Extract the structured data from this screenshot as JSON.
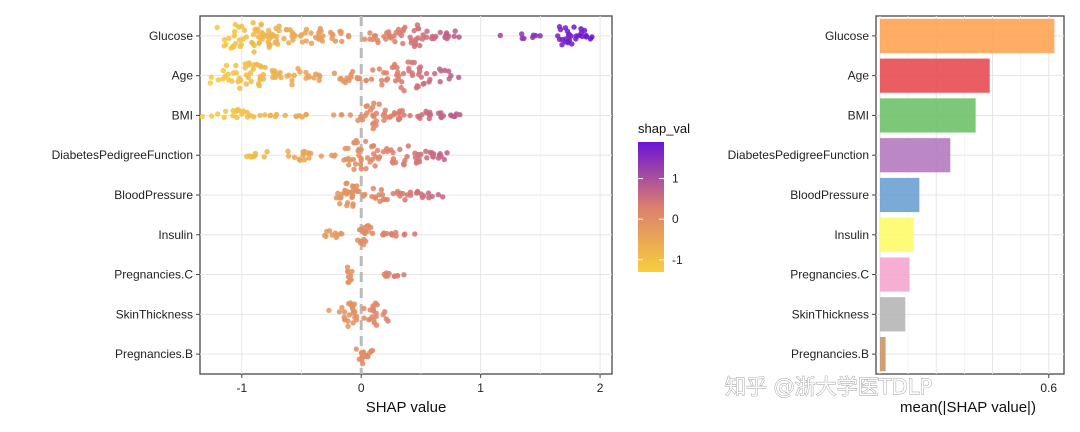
{
  "chart_data": [
    {
      "type": "scatter",
      "subtype": "beeswarm",
      "features": [
        "Glucose",
        "Age",
        "BMI",
        "DiabetesPedigreeFunction",
        "BloodPressure",
        "Insulin",
        "Pregnancies.C",
        "SkinThickness",
        "Pregnancies.B"
      ],
      "clusters": [
        [
          [
            -0.95,
            0.14,
            44,
            1.0
          ],
          [
            -0.7,
            0.1,
            24,
            0.6
          ],
          [
            -0.4,
            0.09,
            20,
            0.5
          ],
          [
            -0.2,
            0.07,
            12,
            0.4
          ],
          [
            0.15,
            0.07,
            14,
            0.4
          ],
          [
            0.42,
            0.12,
            30,
            0.7
          ],
          [
            0.72,
            0.08,
            12,
            0.4
          ],
          [
            1.35,
            0.12,
            8,
            0.15
          ],
          [
            1.72,
            0.12,
            26,
            0.6
          ],
          [
            1.92,
            0.04,
            3,
            0.1
          ]
        ],
        [
          [
            -0.95,
            0.15,
            42,
            0.95
          ],
          [
            -0.55,
            0.12,
            22,
            0.55
          ],
          [
            -0.1,
            0.1,
            16,
            0.45
          ],
          [
            0.35,
            0.12,
            40,
            0.95
          ],
          [
            0.68,
            0.08,
            12,
            0.4
          ]
        ],
        [
          [
            -1.05,
            0.1,
            18,
            0.35
          ],
          [
            -0.75,
            0.03,
            3,
            0.1
          ],
          [
            -0.5,
            0.15,
            10,
            0.1
          ],
          [
            -0.15,
            0.05,
            4,
            0.1
          ],
          [
            0.12,
            0.06,
            26,
            0.85
          ],
          [
            0.32,
            0.07,
            14,
            0.3
          ],
          [
            0.55,
            0.1,
            14,
            0.25
          ],
          [
            0.82,
            0.05,
            6,
            0.1
          ]
        ],
        [
          [
            -0.85,
            0.08,
            8,
            0.25
          ],
          [
            -0.55,
            0.08,
            14,
            0.35
          ],
          [
            -0.25,
            0.04,
            4,
            0.15
          ],
          [
            0.0,
            0.09,
            34,
            0.95
          ],
          [
            0.38,
            0.12,
            28,
            0.6
          ],
          [
            0.65,
            0.06,
            10,
            0.3
          ]
        ],
        [
          [
            -0.12,
            0.06,
            26,
            0.85
          ],
          [
            0.2,
            0.12,
            26,
            0.5
          ],
          [
            0.5,
            0.08,
            12,
            0.25
          ]
        ],
        [
          [
            -0.25,
            0.04,
            10,
            0.25
          ],
          [
            0.02,
            0.05,
            20,
            0.65
          ],
          [
            0.28,
            0.08,
            12,
            0.2
          ]
        ],
        [
          [
            -0.1,
            0.02,
            10,
            0.6
          ],
          [
            0.25,
            0.05,
            10,
            0.15
          ]
        ],
        [
          [
            -0.1,
            0.06,
            24,
            0.85
          ],
          [
            0.12,
            0.07,
            20,
            0.7
          ]
        ],
        [
          [
            0.0,
            0.02,
            12,
            0.65
          ],
          [
            0.08,
            0.03,
            6,
            0.25
          ]
        ]
      ],
      "xlabel": "SHAP value",
      "xlim": [
        -1.35,
        2.1
      ],
      "xticks": [
        -1,
        0,
        1,
        2
      ],
      "xtick_labels": [
        "-1",
        "0",
        "1",
        "2"
      ],
      "zero_line": true,
      "legend": {
        "title": "shap_val",
        "placement": "right",
        "ticks": [
          1,
          0,
          -1
        ],
        "tick_labels": [
          "1",
          "0",
          "-1"
        ],
        "range": [
          -1.3,
          1.9
        ],
        "colors": [
          "#f7cf3e",
          "#dc7f6e",
          "#6a14d6"
        ]
      },
      "grid": true
    },
    {
      "type": "bar",
      "orientation": "horizontal",
      "categories": [
        "Glucose",
        "Age",
        "BMI",
        "DiabetesPedigreeFunction",
        "BloodPressure",
        "Insulin",
        "Pregnancies.C",
        "SkinThickness",
        "Pregnancies.B"
      ],
      "values": [
        0.62,
        0.39,
        0.34,
        0.25,
        0.14,
        0.12,
        0.105,
        0.09,
        0.02
      ],
      "colors": [
        "#ffa04e",
        "#e6474d",
        "#6bbf66",
        "#b276bd",
        "#6a9ed0",
        "#fdfb65",
        "#f5a4cd",
        "#b4b4b4",
        "#c89362"
      ],
      "xlabel": "mean(|SHAP value|)",
      "xlim": [
        0,
        0.64
      ],
      "xtick_labels": [
        "0.6"
      ],
      "grid": true
    }
  ],
  "watermark": "知乎 @浙大学医TDLP"
}
